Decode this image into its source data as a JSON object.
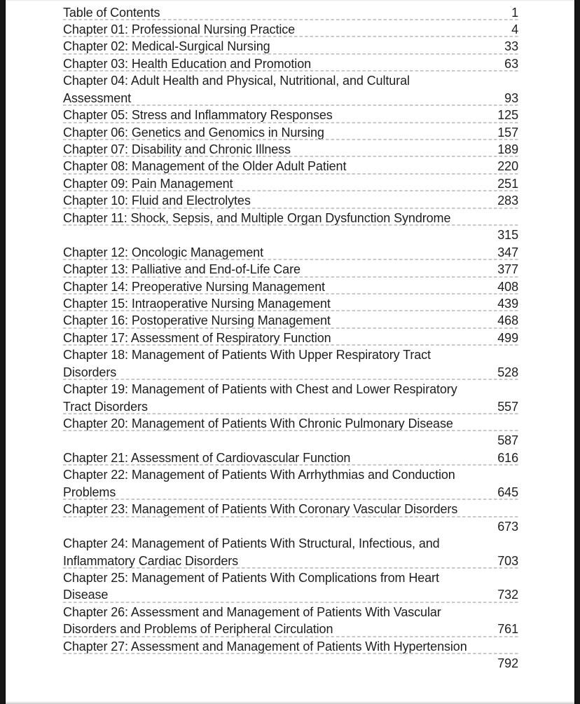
{
  "page": {
    "kind": "book-table-of-contents",
    "colors": {
      "paper": "#ffffff",
      "text": "#1e1e1e",
      "leader_dashes": "#c9c9c9",
      "screen_edges": "#161616"
    }
  },
  "toc": {
    "entries": [
      {
        "title": "Table of Contents",
        "page": "1",
        "lines": [
          {
            "text": "Table of Contents",
            "page": "1",
            "leader": true
          }
        ]
      },
      {
        "title": "Chapter 01: Professional Nursing Practice",
        "page": "4",
        "lines": [
          {
            "text": "Chapter 01: Professional Nursing Practice",
            "page": "4",
            "leader": true
          }
        ]
      },
      {
        "title": "Chapter 02: Medical-Surgical Nursing",
        "page": "33",
        "lines": [
          {
            "text": "Chapter 02: Medical-Surgical Nursing",
            "page": "33",
            "leader": true
          }
        ]
      },
      {
        "title": "Chapter 03: Health Education and Promotion",
        "page": "63",
        "lines": [
          {
            "text": "Chapter 03: Health Education and Promotion",
            "page": "63",
            "leader": true
          }
        ]
      },
      {
        "title": "Chapter 04: Adult Health and Physical, Nutritional, and Cultural Assessment",
        "page": "93",
        "lines": [
          {
            "text": "Chapter 04: Adult Health and Physical, Nutritional, and Cultural",
            "page": "",
            "leader": false
          },
          {
            "text": "Assessment",
            "page": "93",
            "leader": true
          }
        ]
      },
      {
        "title": "Chapter 05: Stress and Inflammatory Responses",
        "page": "125",
        "lines": [
          {
            "text": "Chapter 05: Stress and Inflammatory Responses",
            "page": "125",
            "leader": true
          }
        ]
      },
      {
        "title": "Chapter 06: Genetics and Genomics in Nursing",
        "page": "157",
        "lines": [
          {
            "text": "Chapter 06: Genetics and Genomics in Nursing",
            "page": "157",
            "leader": true
          }
        ]
      },
      {
        "title": "Chapter 07: Disability and Chronic Illness",
        "page": "189",
        "lines": [
          {
            "text": "Chapter 07: Disability and Chronic Illness",
            "page": "189",
            "leader": true
          }
        ]
      },
      {
        "title": "Chapter 08: Management of the Older Adult Patient",
        "page": "220",
        "lines": [
          {
            "text": "Chapter 08: Management of the Older Adult Patient",
            "page": "220",
            "leader": true
          }
        ]
      },
      {
        "title": "Chapter 09: Pain Management",
        "page": "251",
        "lines": [
          {
            "text": "Chapter 09: Pain Management",
            "page": "251",
            "leader": true
          }
        ]
      },
      {
        "title": "Chapter 10: Fluid and Electrolytes",
        "page": "283",
        "lines": [
          {
            "text": "Chapter 10: Fluid and Electrolytes",
            "page": "283",
            "leader": true
          }
        ]
      },
      {
        "title": "Chapter 11: Shock, Sepsis, and Multiple Organ Dysfunction Syndrome",
        "page": "315",
        "lines": [
          {
            "text": "Chapter 11: Shock, Sepsis, and Multiple Organ Dysfunction Syndrome",
            "page": "",
            "leader": true
          },
          {
            "text": "",
            "page": "315",
            "leader": false
          }
        ]
      },
      {
        "title": "Chapter 12: Oncologic Management",
        "page": "347",
        "lines": [
          {
            "text": "Chapter 12: Oncologic Management",
            "page": "347",
            "leader": true
          }
        ]
      },
      {
        "title": "Chapter 13: Palliative and End-of-Life Care",
        "page": "377",
        "lines": [
          {
            "text": "Chapter 13: Palliative and End-of-Life Care",
            "page": "377",
            "leader": true
          }
        ]
      },
      {
        "title": "Chapter 14: Preoperative Nursing Management",
        "page": "408",
        "lines": [
          {
            "text": "Chapter 14: Preoperative Nursing Management",
            "page": "408",
            "leader": true
          }
        ]
      },
      {
        "title": "Chapter 15: Intraoperative Nursing Management",
        "page": "439",
        "lines": [
          {
            "text": "Chapter 15: Intraoperative Nursing Management",
            "page": "439",
            "leader": true
          }
        ]
      },
      {
        "title": "Chapter 16: Postoperative Nursing Management",
        "page": "468",
        "lines": [
          {
            "text": "Chapter 16: Postoperative Nursing Management",
            "page": "468",
            "leader": true
          }
        ]
      },
      {
        "title": "Chapter 17: Assessment of Respiratory Function",
        "page": "499",
        "lines": [
          {
            "text": "Chapter 17: Assessment of Respiratory Function",
            "page": "499",
            "leader": true
          }
        ]
      },
      {
        "title": "Chapter 18: Management of Patients With Upper Respiratory Tract Disorders",
        "page": "528",
        "lines": [
          {
            "text": "Chapter 18: Management of Patients With Upper Respiratory Tract",
            "page": "",
            "leader": false
          },
          {
            "text": "Disorders",
            "page": "528",
            "leader": true
          }
        ]
      },
      {
        "title": "Chapter 19: Management of Patients with Chest and Lower Respiratory Tract Disorders",
        "page": "557",
        "lines": [
          {
            "text": "Chapter 19: Management of Patients with Chest and Lower Respiratory",
            "page": "",
            "leader": false
          },
          {
            "text": "Tract Disorders",
            "page": "557",
            "leader": true
          }
        ]
      },
      {
        "title": "Chapter 20: Management of Patients With Chronic Pulmonary Disease",
        "page": "587",
        "lines": [
          {
            "text": "Chapter 20: Management of Patients With Chronic Pulmonary Disease",
            "page": "",
            "leader": true
          },
          {
            "text": "",
            "page": "587",
            "leader": false
          }
        ]
      },
      {
        "title": "Chapter 21: Assessment of Cardiovascular Function",
        "page": "616",
        "lines": [
          {
            "text": "Chapter 21: Assessment of Cardiovascular Function",
            "page": "616",
            "leader": true
          }
        ]
      },
      {
        "title": "Chapter 22: Management of Patients With Arrhythmias and Conduction Problems",
        "page": "645",
        "lines": [
          {
            "text": "Chapter 22: Management of Patients With Arrhythmias and Conduction",
            "page": "",
            "leader": false
          },
          {
            "text": "Problems",
            "page": "645",
            "leader": true
          }
        ]
      },
      {
        "title": "Chapter 23: Management of Patients With Coronary Vascular Disorders",
        "page": "673",
        "lines": [
          {
            "text": "Chapter 23: Management of Patients With Coronary Vascular Disorders",
            "page": "",
            "leader": true
          },
          {
            "text": "",
            "page": "673",
            "leader": false
          }
        ]
      },
      {
        "title": "Chapter 24: Management of Patients With Structural, Infectious, and Inflammatory Cardiac Disorders",
        "page": "703",
        "lines": [
          {
            "text": "Chapter 24: Management of Patients With Structural, Infectious, and",
            "page": "",
            "leader": false
          },
          {
            "text": "Inflammatory Cardiac Disorders",
            "page": "703",
            "leader": true
          }
        ]
      },
      {
        "title": "Chapter 25: Management of Patients With Complications from Heart Disease",
        "page": "732",
        "lines": [
          {
            "text": "Chapter 25: Management of Patients With Complications from Heart",
            "page": "",
            "leader": false
          },
          {
            "text": "Disease",
            "page": "732",
            "leader": true
          }
        ]
      },
      {
        "title": "Chapter 26: Assessment and Management of Patients With Vascular Disorders and Problems of Peripheral Circulation",
        "page": "761",
        "lines": [
          {
            "text": "Chapter 26: Assessment and Management of Patients With Vascular",
            "page": "",
            "leader": false
          },
          {
            "text": "Disorders and Problems of Peripheral Circulation",
            "page": "761",
            "leader": true
          }
        ]
      },
      {
        "title": "Chapter 27: Assessment and Management of Patients With Hypertension",
        "page": "792",
        "lines": [
          {
            "text": "Chapter 27: Assessment and Management of Patients With Hypertension",
            "page": "",
            "leader": true
          },
          {
            "text": "",
            "page": "792",
            "leader": false
          }
        ]
      }
    ]
  }
}
